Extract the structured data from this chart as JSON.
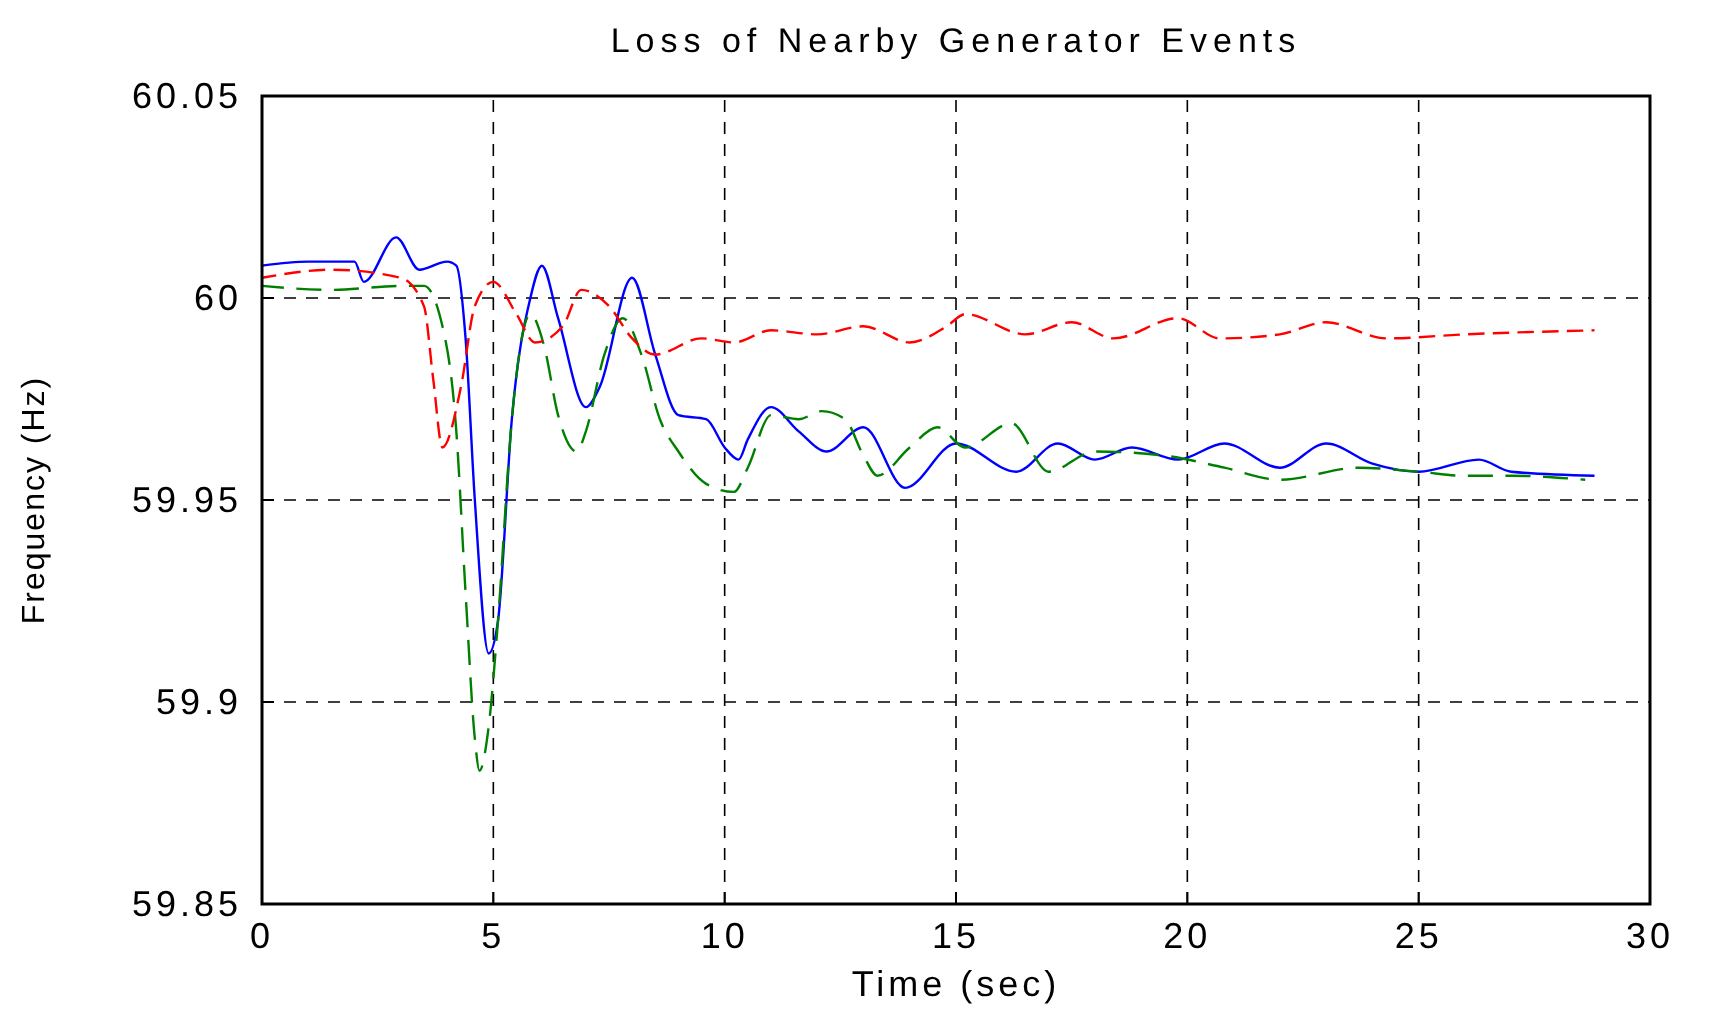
{
  "chart_data": {
    "type": "line",
    "title": "Loss of Nearby Generator Events",
    "xlabel": "Time (sec)",
    "ylabel": "Frequency (Hz)",
    "xlim": [
      0,
      30
    ],
    "xticks": [
      0,
      5,
      10,
      15,
      20,
      25,
      30
    ],
    "ylim": [
      59.85,
      60.05
    ],
    "yticks": [
      59.85,
      59.9,
      59.95,
      60,
      60.05
    ],
    "grid": true,
    "series": [
      {
        "color": "#ff0000",
        "line_style": "dashed",
        "x": [
          0,
          1.5,
          3,
          3.5,
          3.7,
          3.9,
          4.3,
          4.6,
          5,
          5.5,
          5.9,
          6.5,
          6.9,
          7.5,
          8,
          8.5,
          9.5,
          10.2,
          11,
          12,
          13,
          14,
          14.8,
          15.2,
          16.5,
          17.5,
          18.4,
          19.8,
          20.7,
          22,
          23,
          24.3,
          26,
          28.8
        ],
        "values": [
          60.005,
          60.007,
          60.005,
          59.998,
          59.98,
          59.963,
          59.978,
          59.998,
          60.004,
          59.996,
          59.989,
          59.993,
          60.002,
          59.998,
          59.99,
          59.986,
          59.99,
          59.989,
          59.992,
          59.991,
          59.993,
          59.989,
          59.993,
          59.996,
          59.991,
          59.994,
          59.99,
          59.995,
          59.99,
          59.991,
          59.994,
          59.99,
          59.991,
          59.992
        ]
      },
      {
        "color": "#008000",
        "line_style": "dashed",
        "x": [
          0,
          1.5,
          3,
          3.5,
          3.9,
          4.2,
          4.4,
          4.6,
          4.7,
          4.9,
          5.1,
          5.4,
          5.8,
          6.1,
          6.4,
          6.8,
          7,
          7.4,
          7.8,
          8.2,
          8.6,
          9,
          9.6,
          10.2,
          10.5,
          11,
          11.6,
          12.1,
          12.6,
          13,
          13.3,
          14,
          14.6,
          15.2,
          16.2,
          17,
          18,
          19.5,
          20.8,
          22,
          23.7,
          25,
          26,
          27,
          28.6
        ],
        "values": [
          60.003,
          60.002,
          60.003,
          60.003,
          59.993,
          59.967,
          59.927,
          59.891,
          59.883,
          59.894,
          59.92,
          59.97,
          59.996,
          59.988,
          59.971,
          59.962,
          59.967,
          59.986,
          59.995,
          59.986,
          59.97,
          59.962,
          59.954,
          59.952,
          59.958,
          59.971,
          59.97,
          59.972,
          59.97,
          59.961,
          59.956,
          59.963,
          59.968,
          59.963,
          59.969,
          59.957,
          59.962,
          59.961,
          59.958,
          59.955,
          59.958,
          59.957,
          59.956,
          59.956,
          59.955
        ]
      },
      {
        "color": "#0000ff",
        "line_style": "solid",
        "x": [
          0,
          1,
          2,
          2.2,
          2.9,
          3.4,
          4,
          4.2,
          4.4,
          4.6,
          4.9,
          5.1,
          5.4,
          5.8,
          6.05,
          6.4,
          7,
          7.3,
          8,
          8.5,
          9,
          9.6,
          10,
          10.3,
          10.5,
          11,
          11.6,
          12.2,
          13,
          13.9,
          15,
          16.3,
          17.2,
          18,
          18.8,
          19.8,
          20.8,
          22,
          23,
          24,
          25,
          26.3,
          27,
          28.8
        ],
        "values": [
          60.008,
          60.009,
          60.009,
          60.004,
          60.015,
          60.007,
          60.009,
          60.008,
          59.99,
          59.95,
          59.912,
          59.92,
          59.97,
          60,
          60.008,
          59.995,
          59.973,
          59.978,
          60.005,
          59.986,
          59.971,
          59.97,
          59.963,
          59.96,
          59.965,
          59.973,
          59.967,
          59.962,
          59.968,
          59.953,
          59.964,
          59.957,
          59.964,
          59.96,
          59.963,
          59.96,
          59.964,
          59.958,
          59.964,
          59.959,
          59.957,
          59.96,
          59.957,
          59.956
        ]
      }
    ]
  }
}
